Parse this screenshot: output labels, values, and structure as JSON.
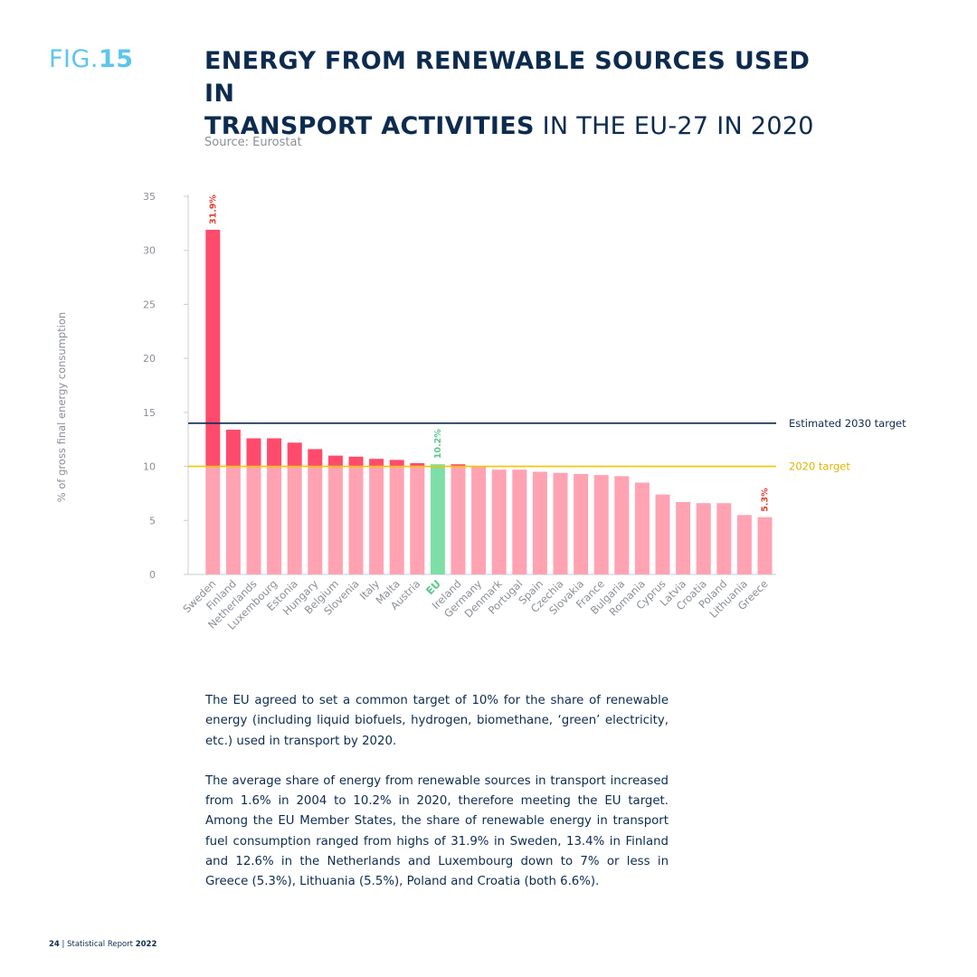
{
  "header": {
    "fig_prefix": "FIG.",
    "fig_number": "15",
    "title_bold_line1": "ENERGY FROM RENEWABLE SOURCES USED IN",
    "title_bold_line2": "TRANSPORT ACTIVITIES",
    "title_light_line2": " IN THE EU-27 IN 2020",
    "source": "Source: Eurostat"
  },
  "chart_data": {
    "type": "bar",
    "ylabel": "% of gross final energy consumption",
    "ylim": [
      0,
      35
    ],
    "yticks": [
      0,
      5,
      10,
      15,
      20,
      25,
      30,
      35
    ],
    "categories": [
      "Sweden",
      "Finland",
      "Netherlands",
      "Luxembourg",
      "Estonia",
      "Hungary",
      "Belgium",
      "Slovenia",
      "Italy",
      "Malta",
      "Austria",
      "EU",
      "Ireland",
      "Germany",
      "Denmark",
      "Portugal",
      "Spain",
      "Czechia",
      "Slovakia",
      "France",
      "Bulgaria",
      "Romania",
      "Cyprus",
      "Latvia",
      "Croatia",
      "Poland",
      "Lithuania",
      "Greece"
    ],
    "values": [
      31.9,
      13.4,
      12.6,
      12.6,
      12.2,
      11.6,
      11.0,
      10.9,
      10.7,
      10.6,
      10.3,
      10.2,
      10.2,
      10.0,
      9.7,
      9.7,
      9.5,
      9.4,
      9.3,
      9.2,
      9.1,
      8.5,
      7.4,
      6.7,
      6.6,
      6.6,
      5.5,
      5.3
    ],
    "highlight_category": "EU",
    "data_labels": [
      {
        "category": "Sweden",
        "text": "31.9%"
      },
      {
        "category": "EU",
        "text": "10.2%"
      },
      {
        "category": "Greece",
        "text": "5.3%"
      }
    ],
    "reference_lines": [
      {
        "label": "Estimated 2030 target",
        "value": 14,
        "color": "#0d2b4e"
      },
      {
        "label": "2020 target",
        "value": 10,
        "color": "#f5c400"
      }
    ],
    "colors": {
      "bar_below_target": "#ffa3b3",
      "bar_above_target": "#ff4b6b",
      "eu_bar": "#7ddfa5",
      "label_red": "#e8402e",
      "label_green": "#5cc98a",
      "axis": "#c9cdd2",
      "tick_text": "#8a8f96"
    }
  },
  "body": {
    "paragraph1": "The EU agreed to set a common target of 10% for the share of renewable energy (including liquid biofuels, hydrogen, biomethane, ‘green’ electricity, etc.) used in transport by 2020.",
    "paragraph2": "The average share of energy from renewable sources in transport increased from 1.6% in 2004 to 10.2% in 2020, therefore meeting the EU target. Among the EU Member States, the share of renewable energy in transport fuel consumption ranged from highs of 31.9% in Sweden, 13.4% in Finland and 12.6% in the Netherlands and Luxembourg down to 7% or less in Greece (5.3%), Lithuania (5.5%), Poland and Croatia (both 6.6%)."
  },
  "footer": {
    "page_number": "24",
    "separator": " | ",
    "report_prefix": "Statistical Report ",
    "report_year": "2022"
  }
}
